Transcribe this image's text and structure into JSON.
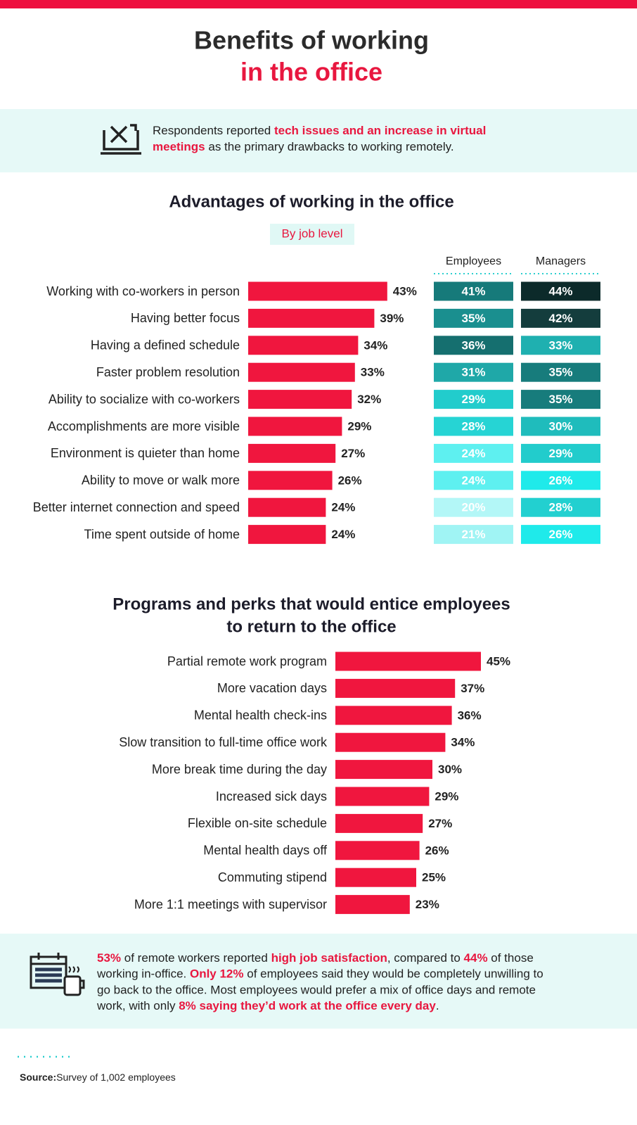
{
  "header": {
    "title_lines": [
      "Benefits of working",
      "in the office"
    ]
  },
  "callout_top": {
    "lines": [
      [
        {
          "text": "Respondents reported ",
          "emphasis": false
        },
        {
          "text": "tech issues and an increase in virtual",
          "emphasis": true
        }
      ],
      [
        {
          "text": "meetings",
          "emphasis": true
        },
        {
          "text": " as the primary drawbacks to working remotely.",
          "emphasis": false
        }
      ]
    ]
  },
  "chart_data": [
    {
      "type": "bar",
      "title": [
        "Advantages of working in the office"
      ],
      "subtitle": "By job level",
      "categories": [
        "Working with co-workers in person",
        "Having better focus",
        "Having a defined schedule",
        "Faster problem resolution",
        "Ability to socialize with co-workers",
        "Accomplishments are more visible",
        "Environment is quieter than home",
        "Ability to move or walk more",
        "Better internet connection and speed",
        "Time spent outside of home"
      ],
      "values": [
        43,
        39,
        34,
        33,
        32,
        29,
        27,
        26,
        24,
        24
      ],
      "value_labels": [
        "43%",
        "39%",
        "34%",
        "33%",
        "32%",
        "29%",
        "27%",
        "26%",
        "24%",
        "24%"
      ],
      "color": "#f0163e",
      "series": [
        {
          "name": "Employees",
          "values": [
            41,
            35,
            36,
            31,
            29,
            28,
            24,
            24,
            20,
            21
          ],
          "value_labels": [
            "41%",
            "35%",
            "36%",
            "31%",
            "29%",
            "28%",
            "24%",
            "24%",
            "20%",
            "21%"
          ],
          "colors": [
            "#167a7a",
            "#1a8f8f",
            "#156f6f",
            "#1fa8a8",
            "#22cccc",
            "#26d4d4",
            "#5ef0f0",
            "#5ef0f0",
            "#b3f7f7",
            "#a0f4f4"
          ]
        },
        {
          "name": "Managers",
          "values": [
            44,
            42,
            33,
            35,
            35,
            30,
            29,
            26,
            28,
            26
          ],
          "value_labels": [
            "44%",
            "42%",
            "33%",
            "35%",
            "35%",
            "30%",
            "29%",
            "26%",
            "28%",
            "26%"
          ],
          "colors": [
            "#0c2a2a",
            "#143d3d",
            "#1fb0b0",
            "#177c7c",
            "#177c7c",
            "#1fbcbc",
            "#22cccc",
            "#1feaea",
            "#22d0d0",
            "#1feaea"
          ]
        }
      ]
    },
    {
      "type": "bar",
      "title": [
        "Programs and perks that would entice employees",
        "to return to the office"
      ],
      "categories": [
        "Partial remote work program",
        "More vacation days",
        "Mental health check-ins",
        "Slow transition to full-time office work",
        "More break time during the day",
        "Increased sick days",
        "Flexible on-site schedule",
        "Mental health days off",
        "Commuting stipend",
        "More 1:1 meetings with supervisor"
      ],
      "values": [
        45,
        37,
        36,
        34,
        30,
        29,
        27,
        26,
        25,
        23
      ],
      "value_labels": [
        "45%",
        "37%",
        "36%",
        "34%",
        "30%",
        "29%",
        "27%",
        "26%",
        "25%",
        "23%"
      ],
      "color": "#f0163e"
    }
  ],
  "callout_bottom": {
    "lines": [
      [
        {
          "text": "53%",
          "emphasis": true
        },
        {
          "text": " of remote workers reported ",
          "emphasis": false
        },
        {
          "text": "high job satisfaction",
          "emphasis": true
        },
        {
          "text": ", compared to ",
          "emphasis": false
        },
        {
          "text": "44%",
          "emphasis": true
        },
        {
          "text": " of those",
          "emphasis": false
        }
      ],
      [
        {
          "text": "working in-office. ",
          "emphasis": false
        },
        {
          "text": "Only 12%",
          "emphasis": true
        },
        {
          "text": " of employees said they would be completely unwilling to",
          "emphasis": false
        }
      ],
      [
        {
          "text": "go back to the office. Most employees would prefer a mix of office days and remote",
          "emphasis": false
        }
      ],
      [
        {
          "text": "work, with only ",
          "emphasis": false
        },
        {
          "text": "8% saying they’d work at the office every day",
          "emphasis": true
        },
        {
          "text": ".",
          "emphasis": false
        }
      ]
    ]
  },
  "source": {
    "label": "Source:",
    "text": "Survey of 1,002 employees"
  }
}
